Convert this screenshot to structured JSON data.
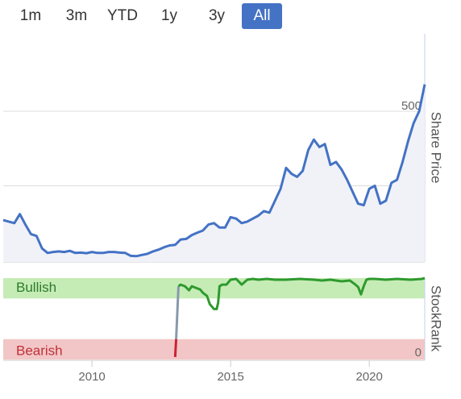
{
  "range_tabs": {
    "selected": "All",
    "items": [
      {
        "label": "1m"
      },
      {
        "label": "3m"
      },
      {
        "label": "YTD"
      },
      {
        "label": "1y"
      },
      {
        "label": "3y"
      },
      {
        "label": "All"
      }
    ]
  },
  "colors": {
    "price_line": "#4472c4",
    "rank_bullish": "#2e9a2e",
    "rank_transition": "#8899aa",
    "rank_bearish": "#cc2233",
    "bullish_band": "#c6ecb6",
    "bearish_band": "#f2c6c6",
    "active_tab": "#4472c4"
  },
  "chart_data": [
    {
      "type": "line",
      "ylabel": "Share Price",
      "yticks": [
        0,
        250,
        500
      ],
      "ylim": [
        0,
        580
      ],
      "xlim": [
        2006.8,
        2022
      ],
      "xticks": [
        2010,
        2015,
        2020
      ],
      "grid": true,
      "series": [
        {
          "values_x": [
            2006.8,
            2007.0,
            2007.2,
            2007.4,
            2007.6,
            2007.8,
            2008.0,
            2008.2,
            2008.4,
            2008.6,
            2008.8,
            2009.0,
            2009.2,
            2009.4,
            2009.6,
            2009.8,
            2010.0,
            2010.2,
            2010.4,
            2010.6,
            2010.8,
            2011.0,
            2011.2,
            2011.4,
            2011.6,
            2011.8,
            2012.0,
            2012.2,
            2012.4,
            2012.6,
            2012.8,
            2013.0,
            2013.2,
            2013.4,
            2013.6,
            2013.8,
            2014.0,
            2014.2,
            2014.4,
            2014.6,
            2014.8,
            2015.0,
            2015.2,
            2015.4,
            2015.6,
            2015.8,
            2016.0,
            2016.2,
            2016.4,
            2016.6,
            2016.8,
            2017.0,
            2017.2,
            2017.4,
            2017.6,
            2017.8,
            2018.0,
            2018.2,
            2018.4,
            2018.6,
            2018.8,
            2019.0,
            2019.2,
            2019.4,
            2019.6,
            2019.8,
            2020.0,
            2020.2,
            2020.4,
            2020.6,
            2020.8,
            2021.0,
            2021.2,
            2021.4,
            2021.6,
            2021.8,
            2022.0
          ],
          "values_y": [
            135,
            130,
            125,
            155,
            120,
            88,
            82,
            40,
            25,
            28,
            30,
            28,
            32,
            25,
            26,
            24,
            28,
            25,
            25,
            28,
            28,
            26,
            25,
            15,
            14,
            18,
            22,
            30,
            36,
            44,
            50,
            52,
            70,
            72,
            85,
            93,
            100,
            120,
            125,
            110,
            110,
            145,
            140,
            125,
            130,
            140,
            150,
            165,
            160,
            200,
            240,
            310,
            290,
            280,
            300,
            370,
            405,
            380,
            390,
            320,
            330,
            305,
            270,
            230,
            190,
            185,
            240,
            250,
            190,
            200,
            260,
            270,
            330,
            400,
            460,
            500,
            590
          ]
        }
      ]
    },
    {
      "type": "line",
      "ylabel": "StockRank",
      "bands": [
        {
          "label": "Bullish",
          "range": [
            75,
            100
          ]
        },
        {
          "label": "Bearish",
          "range": [
            0,
            25
          ]
        }
      ],
      "ytick_label": "0",
      "ylim": [
        0,
        100
      ],
      "xlim": [
        2006.8,
        2022
      ],
      "xticks": [
        2010,
        2015,
        2020
      ],
      "series": [
        {
          "values_x": [
            2013.0,
            2013.12,
            2013.2,
            2013.35,
            2013.5,
            2013.6,
            2013.75,
            2013.9,
            2014.0,
            2014.15,
            2014.25,
            2014.4,
            2014.5,
            2014.55,
            2014.6,
            2014.7,
            2014.85,
            2015.0,
            2015.2,
            2015.4,
            2015.6,
            2015.8,
            2016.0,
            2016.3,
            2016.6,
            2017.0,
            2017.5,
            2018.0,
            2018.3,
            2018.6,
            2019.0,
            2019.3,
            2019.5,
            2019.6,
            2019.7,
            2019.8,
            2019.9,
            2020.0,
            2020.2,
            2020.6,
            2021.0,
            2021.5,
            2021.9,
            2022.0
          ],
          "values_y": [
            3,
            90,
            92,
            90,
            85,
            90,
            88,
            86,
            82,
            78,
            68,
            62,
            62,
            70,
            90,
            92,
            92,
            98,
            99,
            92,
            98,
            99,
            98,
            99,
            98,
            98,
            99,
            98,
            97,
            98,
            96,
            97,
            92,
            89,
            80,
            90,
            98,
            99,
            99,
            98,
            99,
            98,
            99,
            100
          ]
        }
      ]
    }
  ]
}
